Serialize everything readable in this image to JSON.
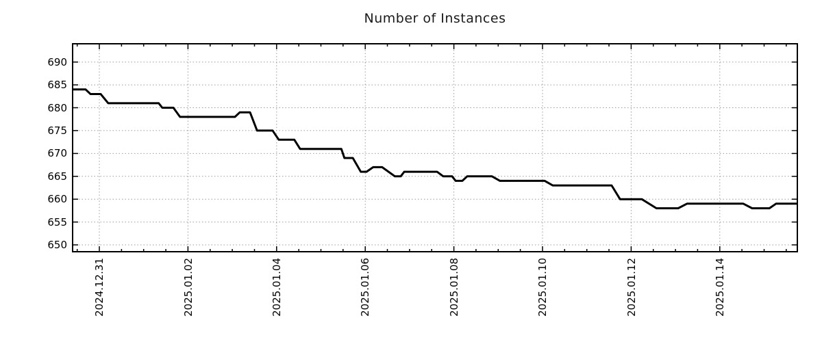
{
  "chart_data": {
    "type": "line",
    "title": "Number of Instances",
    "xlabel": "",
    "ylabel": "",
    "legend": "none",
    "grid": "dotted",
    "x_unit": "days since 2024-12-31 00:00",
    "x_range": [
      -0.603,
      15.75
    ],
    "y_range": [
      648.5,
      694.0
    ],
    "y_ticks": [
      650,
      655,
      660,
      665,
      670,
      675,
      680,
      685,
      690
    ],
    "x_major_ticks": [
      {
        "day": 0,
        "label": "2024.12.31"
      },
      {
        "day": 2,
        "label": "2025.01.02"
      },
      {
        "day": 4,
        "label": "2025.01.04"
      },
      {
        "day": 6,
        "label": "2025.01.06"
      },
      {
        "day": 8,
        "label": "2025.01.08"
      },
      {
        "day": 10,
        "label": "2025.01.10"
      },
      {
        "day": 12,
        "label": "2025.01.12"
      },
      {
        "day": 14,
        "label": "2025.01.14"
      }
    ],
    "x_minor_step": 0.5,
    "line_color": "#000000",
    "line_width": 3,
    "series": [
      {
        "name": "instances",
        "points": [
          [
            -0.6,
            684
          ],
          [
            -0.31,
            684
          ],
          [
            -0.2,
            683
          ],
          [
            0.03,
            683
          ],
          [
            0.2,
            681
          ],
          [
            1.34,
            681
          ],
          [
            1.42,
            680
          ],
          [
            1.67,
            680
          ],
          [
            1.82,
            678
          ],
          [
            3.06,
            678
          ],
          [
            3.17,
            679
          ],
          [
            3.4,
            679
          ],
          [
            3.56,
            675
          ],
          [
            3.91,
            675
          ],
          [
            4.05,
            673
          ],
          [
            4.4,
            673
          ],
          [
            4.53,
            671
          ],
          [
            5.46,
            671
          ],
          [
            5.53,
            669
          ],
          [
            5.72,
            669
          ],
          [
            5.9,
            666
          ],
          [
            6.03,
            666
          ],
          [
            6.18,
            667
          ],
          [
            6.38,
            667
          ],
          [
            6.67,
            665
          ],
          [
            6.8,
            665
          ],
          [
            6.88,
            666
          ],
          [
            7.62,
            666
          ],
          [
            7.76,
            665
          ],
          [
            7.96,
            665
          ],
          [
            8.04,
            664
          ],
          [
            8.19,
            664
          ],
          [
            8.3,
            665
          ],
          [
            8.86,
            665
          ],
          [
            9.04,
            664
          ],
          [
            10.05,
            664
          ],
          [
            10.23,
            663
          ],
          [
            11.56,
            663
          ],
          [
            11.75,
            660
          ],
          [
            12.24,
            660
          ],
          [
            12.57,
            658
          ],
          [
            13.06,
            658
          ],
          [
            13.26,
            659
          ],
          [
            14.53,
            659
          ],
          [
            14.73,
            658
          ],
          [
            15.12,
            658
          ],
          [
            15.27,
            659
          ],
          [
            15.75,
            659
          ]
        ]
      }
    ],
    "colors": {
      "background": "#ffffff",
      "line": "#000000",
      "grid": "#9b9b9b",
      "axis": "#000000",
      "title": "#1a1a1a"
    }
  }
}
